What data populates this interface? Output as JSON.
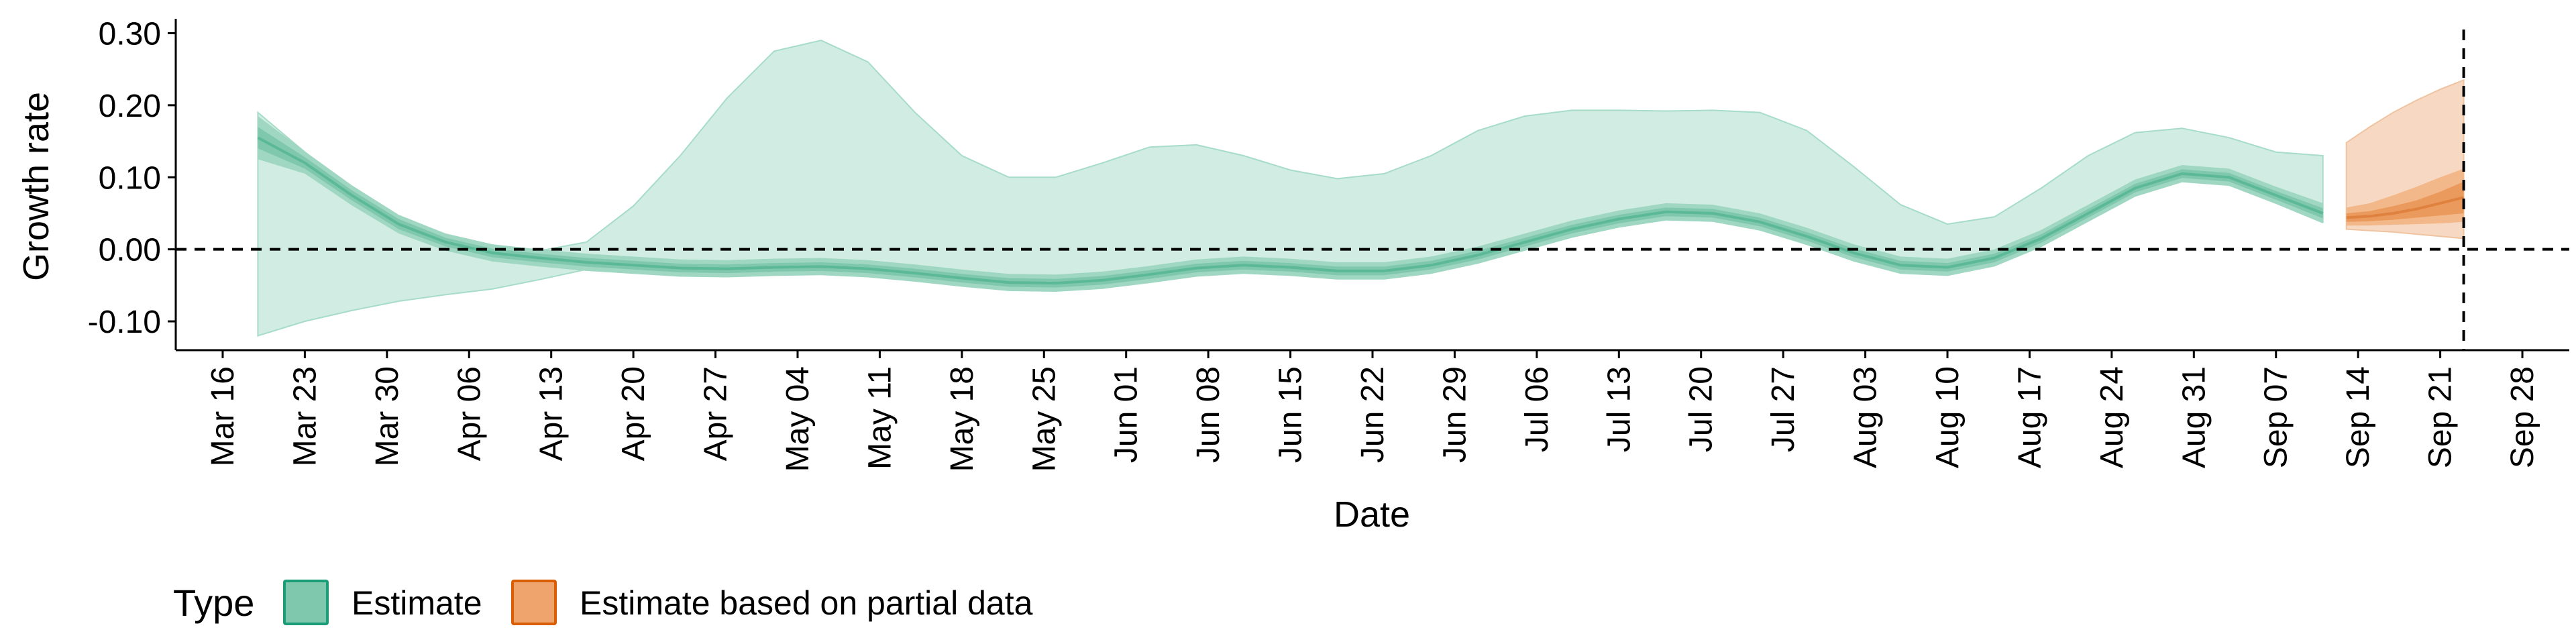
{
  "chart_data": {
    "type": "area",
    "title": "",
    "xlabel": "Date",
    "ylabel": "Growth rate",
    "x_type": "date",
    "xlim": [
      "2020-03-12",
      "2020-10-02"
    ],
    "ylim": [
      -0.14,
      0.32
    ],
    "x_ticks": [
      "2020-03-16",
      "2020-03-23",
      "2020-03-30",
      "2020-04-06",
      "2020-04-13",
      "2020-04-20",
      "2020-04-27",
      "2020-05-04",
      "2020-05-11",
      "2020-05-18",
      "2020-05-25",
      "2020-06-01",
      "2020-06-08",
      "2020-06-15",
      "2020-06-22",
      "2020-06-29",
      "2020-07-06",
      "2020-07-13",
      "2020-07-20",
      "2020-07-27",
      "2020-08-03",
      "2020-08-10",
      "2020-08-17",
      "2020-08-24",
      "2020-08-31",
      "2020-09-07",
      "2020-09-14",
      "2020-09-21",
      "2020-09-28"
    ],
    "x_tick_labels": [
      "Mar 16",
      "Mar 23",
      "Mar 30",
      "Apr 06",
      "Apr 13",
      "Apr 20",
      "Apr 27",
      "May 04",
      "May 11",
      "May 18",
      "May 25",
      "Jun 01",
      "Jun 08",
      "Jun 15",
      "Jun 22",
      "Jun 29",
      "Jul 06",
      "Jul 13",
      "Jul 20",
      "Jul 27",
      "Aug 03",
      "Aug 10",
      "Aug 17",
      "Aug 24",
      "Aug 31",
      "Sep 07",
      "Sep 14",
      "Sep 21",
      "Sep 28"
    ],
    "y_ticks": [
      -0.1,
      0.0,
      0.1,
      0.2,
      0.3
    ],
    "y_tick_labels": [
      "-0.10",
      "0.00",
      "0.10",
      "0.20",
      "0.30"
    ],
    "hline": 0.0,
    "vline": "2020-09-23",
    "grid": false,
    "legend": {
      "title": "Type",
      "position": "bottom-left",
      "items": [
        {
          "label": "Estimate",
          "fill": "#7fc8ae",
          "border": "#1b9e77"
        },
        {
          "label": "Estimate based on partial data",
          "fill": "#eea46c",
          "border": "#d95f02"
        }
      ]
    },
    "series": [
      {
        "name": "Estimate",
        "color": "#1b9e77",
        "x": [
          "2020-03-19",
          "2020-03-23",
          "2020-03-27",
          "2020-03-31",
          "2020-04-04",
          "2020-04-08",
          "2020-04-12",
          "2020-04-16",
          "2020-04-20",
          "2020-04-24",
          "2020-04-28",
          "2020-05-02",
          "2020-05-06",
          "2020-05-10",
          "2020-05-14",
          "2020-05-18",
          "2020-05-22",
          "2020-05-26",
          "2020-05-30",
          "2020-06-03",
          "2020-06-07",
          "2020-06-11",
          "2020-06-15",
          "2020-06-19",
          "2020-06-23",
          "2020-06-27",
          "2020-07-01",
          "2020-07-05",
          "2020-07-09",
          "2020-07-13",
          "2020-07-17",
          "2020-07-21",
          "2020-07-25",
          "2020-07-29",
          "2020-08-02",
          "2020-08-06",
          "2020-08-10",
          "2020-08-14",
          "2020-08-18",
          "2020-08-22",
          "2020-08-26",
          "2020-08-30",
          "2020-09-03",
          "2020-09-07",
          "2020-09-11"
        ],
        "median": [
          0.155,
          0.12,
          0.075,
          0.035,
          0.01,
          -0.005,
          -0.012,
          -0.018,
          -0.022,
          -0.026,
          -0.027,
          -0.025,
          -0.024,
          -0.027,
          -0.033,
          -0.04,
          -0.046,
          -0.047,
          -0.043,
          -0.035,
          -0.026,
          -0.022,
          -0.025,
          -0.03,
          -0.03,
          -0.022,
          -0.008,
          0.01,
          0.028,
          0.042,
          0.052,
          0.05,
          0.038,
          0.018,
          -0.005,
          -0.022,
          -0.025,
          -0.012,
          0.015,
          0.05,
          0.085,
          0.105,
          0.1,
          0.075,
          0.05
        ],
        "lower_50": [
          0.14,
          0.112,
          0.068,
          0.028,
          0.004,
          -0.011,
          -0.018,
          -0.024,
          -0.028,
          -0.032,
          -0.033,
          -0.031,
          -0.03,
          -0.033,
          -0.039,
          -0.046,
          -0.052,
          -0.053,
          -0.049,
          -0.041,
          -0.032,
          -0.028,
          -0.031,
          -0.036,
          -0.036,
          -0.028,
          -0.014,
          0.004,
          0.022,
          0.036,
          0.046,
          0.044,
          0.032,
          0.012,
          -0.011,
          -0.028,
          -0.031,
          -0.018,
          0.009,
          0.044,
          0.079,
          0.099,
          0.094,
          0.069,
          0.043
        ],
        "upper_50": [
          0.17,
          0.128,
          0.082,
          0.042,
          0.016,
          0.001,
          -0.006,
          -0.012,
          -0.016,
          -0.02,
          -0.021,
          -0.019,
          -0.018,
          -0.021,
          -0.027,
          -0.034,
          -0.04,
          -0.041,
          -0.037,
          -0.029,
          -0.02,
          -0.016,
          -0.019,
          -0.024,
          -0.024,
          -0.016,
          -0.002,
          0.016,
          0.034,
          0.048,
          0.058,
          0.056,
          0.044,
          0.024,
          0.001,
          -0.016,
          -0.019,
          -0.006,
          0.021,
          0.056,
          0.091,
          0.111,
          0.106,
          0.081,
          0.057
        ],
        "lower_90": [
          0.125,
          0.105,
          0.061,
          0.022,
          -0.002,
          -0.017,
          -0.024,
          -0.03,
          -0.034,
          -0.038,
          -0.039,
          -0.037,
          -0.036,
          -0.039,
          -0.045,
          -0.052,
          -0.058,
          -0.059,
          -0.055,
          -0.047,
          -0.038,
          -0.034,
          -0.037,
          -0.042,
          -0.042,
          -0.034,
          -0.02,
          -0.002,
          0.016,
          0.03,
          0.04,
          0.038,
          0.026,
          0.006,
          -0.017,
          -0.034,
          -0.037,
          -0.024,
          0.003,
          0.038,
          0.073,
          0.093,
          0.088,
          0.063,
          0.036
        ],
        "upper_90": [
          0.185,
          0.136,
          0.089,
          0.048,
          0.022,
          0.007,
          0.0,
          -0.006,
          -0.01,
          -0.014,
          -0.015,
          -0.013,
          -0.012,
          -0.015,
          -0.021,
          -0.028,
          -0.034,
          -0.035,
          -0.031,
          -0.023,
          -0.014,
          -0.01,
          -0.013,
          -0.018,
          -0.018,
          -0.01,
          0.004,
          0.022,
          0.04,
          0.054,
          0.064,
          0.062,
          0.05,
          0.03,
          0.007,
          -0.01,
          -0.013,
          0.0,
          0.027,
          0.062,
          0.097,
          0.117,
          0.112,
          0.087,
          0.064
        ],
        "lower_outer": [
          -0.12,
          -0.1,
          -0.085,
          -0.072,
          -0.063,
          -0.055,
          -0.042,
          -0.028,
          -0.026,
          -0.028,
          -0.03,
          -0.029,
          -0.028,
          -0.031,
          -0.037,
          -0.044,
          -0.05,
          -0.051,
          -0.047,
          -0.039,
          -0.03,
          -0.026,
          -0.029,
          -0.034,
          -0.034,
          -0.026,
          -0.012,
          0.006,
          0.024,
          0.038,
          0.048,
          0.046,
          0.034,
          0.014,
          -0.009,
          -0.026,
          -0.029,
          -0.016,
          0.011,
          0.046,
          0.081,
          0.101,
          0.096,
          0.071,
          0.038
        ],
        "upper_outer": [
          0.19,
          0.135,
          0.085,
          0.045,
          0.018,
          0.005,
          -0.002,
          0.01,
          0.06,
          0.13,
          0.21,
          0.275,
          0.29,
          0.26,
          0.19,
          0.13,
          0.1,
          0.1,
          0.12,
          0.142,
          0.145,
          0.13,
          0.11,
          0.098,
          0.105,
          0.13,
          0.165,
          0.185,
          0.193,
          0.193,
          0.192,
          0.193,
          0.19,
          0.165,
          0.115,
          0.062,
          0.035,
          0.045,
          0.085,
          0.13,
          0.162,
          0.168,
          0.155,
          0.135,
          0.13
        ]
      },
      {
        "name": "Estimate based on partial data",
        "color": "#d95f02",
        "x": [
          "2020-09-13",
          "2020-09-15",
          "2020-09-17",
          "2020-09-19",
          "2020-09-21",
          "2020-09-23"
        ],
        "median": [
          0.044,
          0.046,
          0.05,
          0.056,
          0.064,
          0.072
        ],
        "lower_50": [
          0.038,
          0.039,
          0.041,
          0.044,
          0.047,
          0.05
        ],
        "upper_50": [
          0.05,
          0.053,
          0.06,
          0.068,
          0.08,
          0.094
        ],
        "lower_90": [
          0.033,
          0.033,
          0.034,
          0.035,
          0.036,
          0.038
        ],
        "upper_90": [
          0.058,
          0.064,
          0.075,
          0.087,
          0.1,
          0.112
        ],
        "lower_outer": [
          0.028,
          0.026,
          0.024,
          0.021,
          0.018,
          0.015
        ],
        "upper_outer": [
          0.148,
          0.17,
          0.19,
          0.207,
          0.222,
          0.235
        ]
      }
    ]
  }
}
